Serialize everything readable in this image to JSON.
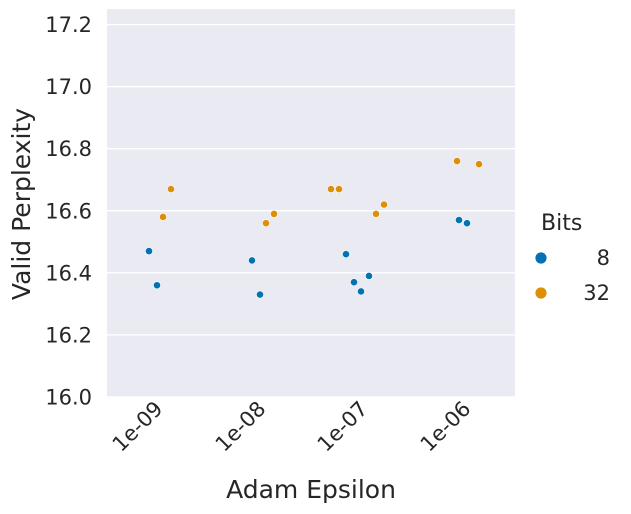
{
  "chart_data": {
    "type": "scatter",
    "title": "",
    "xlabel": "Adam Epsilon",
    "ylabel": "Valid Perplexity",
    "categories": [
      "1e-09",
      "1e-08",
      "1e-07",
      "1e-06"
    ],
    "ylim": [
      16.0,
      17.25
    ],
    "yticks": [
      "16.0",
      "16.2",
      "16.4",
      "16.6",
      "16.8",
      "17.0",
      "17.2"
    ],
    "grid": true,
    "legend": {
      "title": "Bits",
      "position": "right"
    },
    "series": [
      {
        "name": "8",
        "color": "#0173b2",
        "points": [
          {
            "x": "1e-09",
            "y": 16.47
          },
          {
            "x": "1e-09",
            "y": 16.36
          },
          {
            "x": "1e-08",
            "y": 16.44
          },
          {
            "x": "1e-08",
            "y": 16.33
          },
          {
            "x": "1e-07",
            "y": 16.46
          },
          {
            "x": "1e-07",
            "y": 16.37
          },
          {
            "x": "1e-07",
            "y": 16.34
          },
          {
            "x": "1e-07",
            "y": 16.39
          },
          {
            "x": "1e-06",
            "y": 16.57
          },
          {
            "x": "1e-06",
            "y": 16.56
          }
        ]
      },
      {
        "name": "32",
        "color": "#de8f05",
        "points": [
          {
            "x": "1e-09",
            "y": 16.58
          },
          {
            "x": "1e-09",
            "y": 16.67
          },
          {
            "x": "1e-08",
            "y": 16.56
          },
          {
            "x": "1e-08",
            "y": 16.59
          },
          {
            "x": "1e-07",
            "y": 16.67
          },
          {
            "x": "1e-07",
            "y": 16.67
          },
          {
            "x": "1e-07",
            "y": 16.59
          },
          {
            "x": "1e-07",
            "y": 16.62
          },
          {
            "x": "1e-06",
            "y": 16.76
          },
          {
            "x": "1e-06",
            "y": 16.75
          }
        ]
      }
    ]
  }
}
